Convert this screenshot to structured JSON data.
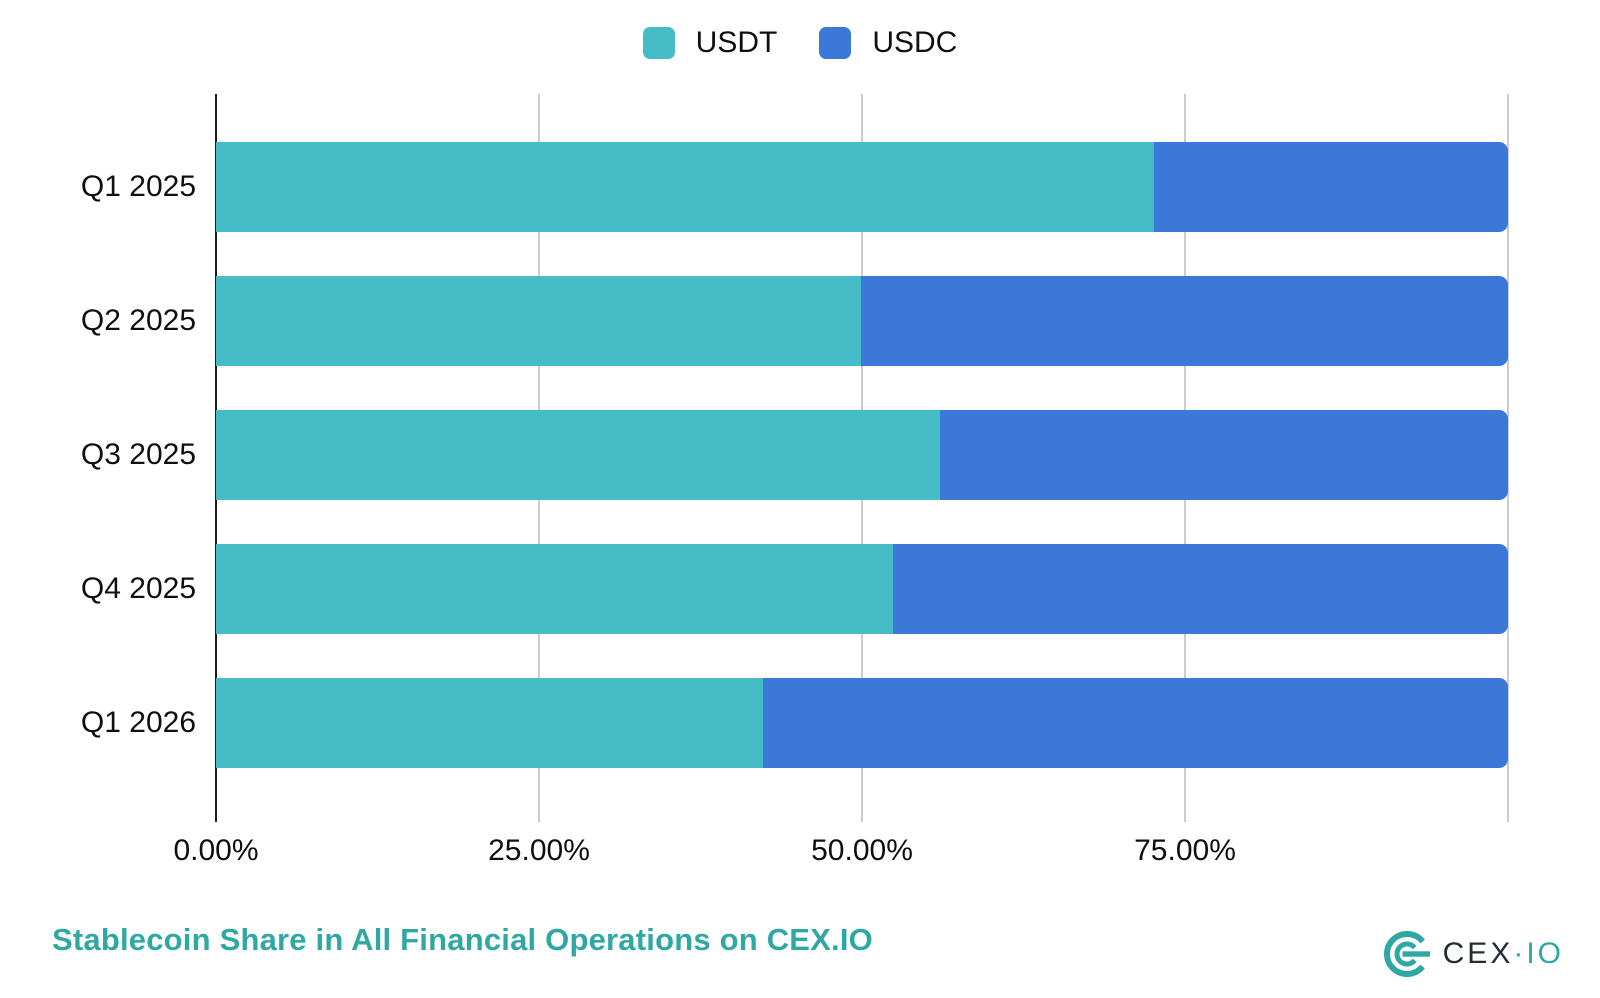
{
  "page": {
    "background": "#ffffff"
  },
  "legend": {
    "position": "top-center",
    "items": [
      {
        "label": "USDT",
        "color": "#46BDC6"
      },
      {
        "label": "USDC",
        "color": "#3C78D8"
      }
    ]
  },
  "chart_data": {
    "type": "bar",
    "orientation": "horizontal",
    "stacked": true,
    "stacked_total": 100,
    "title": "Stablecoin Share in All Financial Operations on CEX.IO",
    "categories": [
      "Q1 2025",
      "Q2 2025",
      "Q3 2025",
      "Q4 2025",
      "Q1 2026"
    ],
    "series": [
      {
        "name": "USDT",
        "color": "#46BDC6",
        "values": [
          72.6,
          49.9,
          56.0,
          52.4,
          42.3
        ]
      },
      {
        "name": "USDC",
        "color": "#3C78D8",
        "values": [
          27.4,
          50.1,
          44.0,
          47.6,
          57.7
        ]
      }
    ],
    "xlabel": "",
    "ylabel": "",
    "x_axis": {
      "min": 0,
      "max": 100,
      "tick_step": 25,
      "gridline_values": [
        0,
        25,
        50,
        75,
        100
      ],
      "tick_labels": [
        "0.00%",
        "25.00%",
        "50.00%",
        "75.00%"
      ],
      "grid": true,
      "grid_color": "#cccccc",
      "axis_color": "#1c1c1c"
    },
    "legend_position": "top",
    "value_format": "percent"
  },
  "footer": {
    "title": "Stablecoin Share in All Financial Operations on CEX.IO",
    "title_color": "#2FA8A3"
  },
  "logo": {
    "name": "CEX.IO",
    "text_primary": "CEX",
    "separator": "·",
    "text_secondary": "IO",
    "mark_color": "#2FA8A3",
    "primary_text_color": "#232B35",
    "secondary_text_color": "#2FA8A3"
  }
}
